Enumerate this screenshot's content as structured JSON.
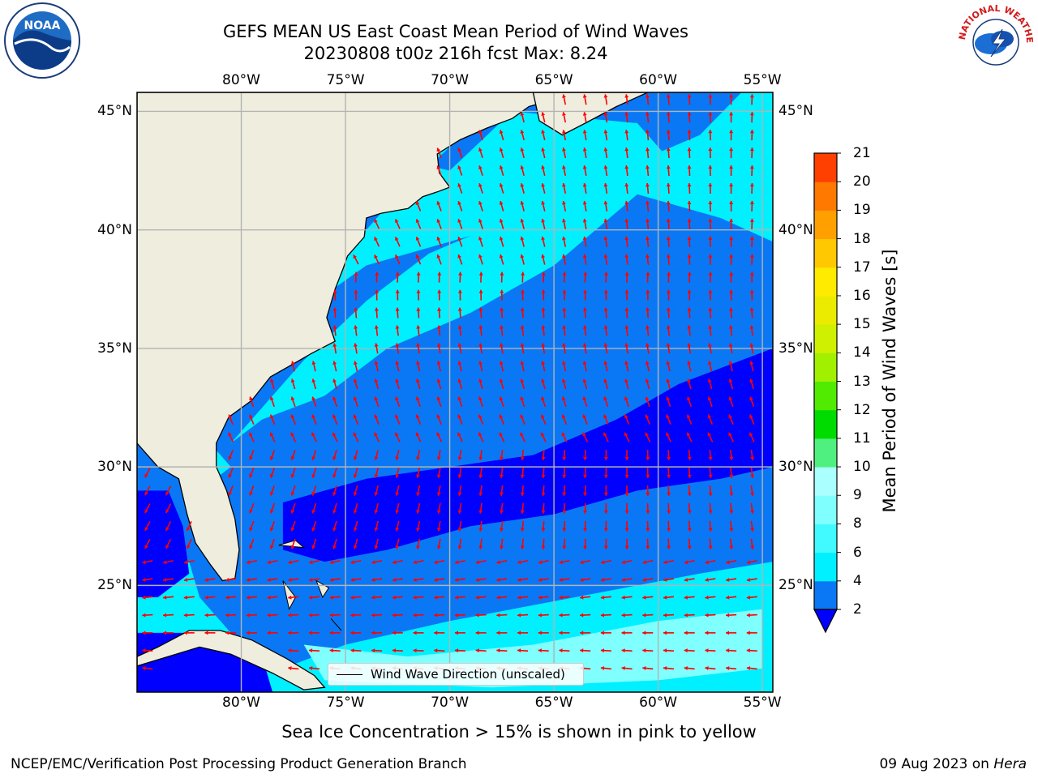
{
  "header": {
    "title_line1": "GEFS MEAN US East Coast Mean Period of Wind Waves",
    "title_line2": "20230808 t00z 216h fcst   Max: 8.24"
  },
  "logos": {
    "noaa": {
      "name": "NOAA",
      "text": "NOAA"
    },
    "nws": {
      "name": "National Weather Service",
      "text": "NATIONAL WEATHER SERVICE"
    }
  },
  "map": {
    "lon_labels": [
      "80°W",
      "75°W",
      "70°W",
      "65°W",
      "60°W",
      "55°W"
    ],
    "lat_labels": [
      "45°N",
      "40°N",
      "35°N",
      "30°N",
      "25°N"
    ],
    "extent": {
      "lon": [
        -85,
        -54.5
      ],
      "lat": [
        20.5,
        45.8
      ]
    },
    "arrow_color": "#ff0000",
    "land_color": "#efedde",
    "grid_color": "#b3b3b3"
  },
  "legend": {
    "label": "Wind Wave Direction (unscaled)"
  },
  "colorbar": {
    "label": "Mean Period of Wind Waves [s]",
    "ticks": [
      "2",
      "4",
      "6",
      "8",
      "9",
      "10",
      "11",
      "12",
      "13",
      "14",
      "15",
      "16",
      "17",
      "18",
      "19",
      "20",
      "21"
    ],
    "colors": [
      "#0a78f5",
      "#00f0ff",
      "#40faff",
      "#80ffff",
      "#aaffff",
      "#50f080",
      "#00dc00",
      "#50eb00",
      "#a0f000",
      "#cff000",
      "#ebeb00",
      "#ffeb00",
      "#ffc800",
      "#ffa000",
      "#ff7800",
      "#ff4000",
      "#ff1000",
      "#ff0000"
    ],
    "under_color": "#0000ff"
  },
  "notes": {
    "sea_ice": "Sea Ice Concentration > 15% is shown in pink to yellow",
    "credit_left": "NCEP/EMC/Verification Post Processing Product Generation Branch",
    "credit_date": "09 Aug 2023 on ",
    "credit_host": "Hera"
  }
}
